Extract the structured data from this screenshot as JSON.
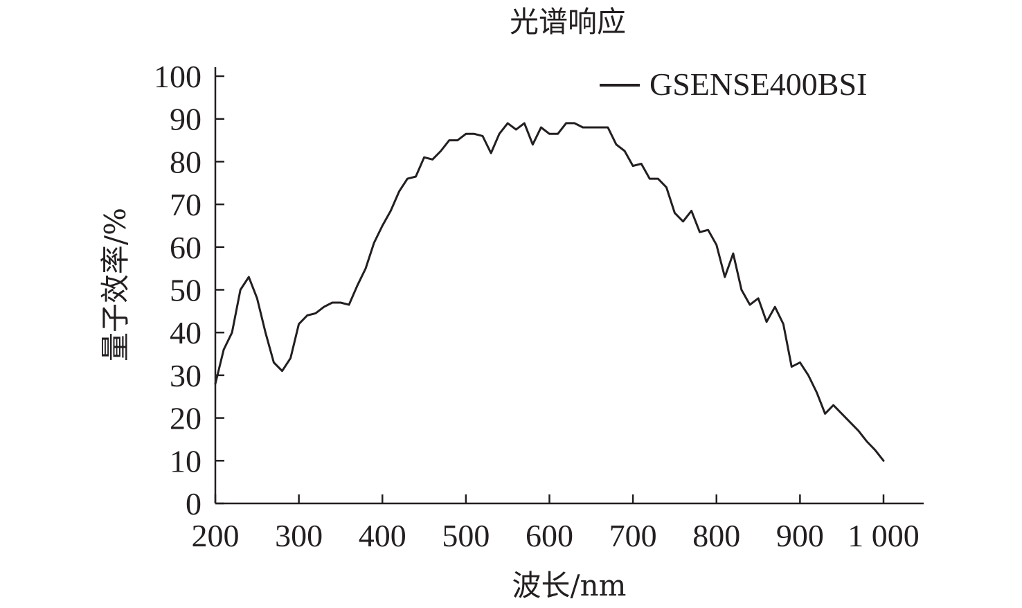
{
  "chart_data": {
    "type": "line",
    "title": "光谱响应",
    "xlabel": "波长/nm",
    "ylabel": "量子效率/%",
    "xlim": [
      200,
      1000
    ],
    "ylim": [
      0,
      100
    ],
    "x_ticks": [
      200,
      300,
      400,
      500,
      600,
      700,
      800,
      900,
      1000
    ],
    "x_tick_labels": [
      "200",
      "300",
      "400",
      "500",
      "600",
      "700",
      "800",
      "900",
      "1 000"
    ],
    "y_ticks": [
      0,
      10,
      20,
      30,
      40,
      50,
      60,
      70,
      80,
      90,
      100
    ],
    "y_tick_labels": [
      "0",
      "10",
      "20",
      "30",
      "40",
      "50",
      "60",
      "70",
      "80",
      "90",
      "100"
    ],
    "grid": false,
    "legend_position": "top-right",
    "line_color": "#231f20",
    "series": [
      {
        "name": "GSENSE400BSI",
        "x": [
          200,
          210,
          220,
          230,
          240,
          250,
          260,
          270,
          280,
          290,
          300,
          310,
          320,
          330,
          340,
          350,
          360,
          370,
          380,
          390,
          400,
          410,
          420,
          430,
          440,
          450,
          460,
          470,
          480,
          490,
          500,
          510,
          520,
          530,
          540,
          550,
          560,
          570,
          580,
          590,
          600,
          610,
          620,
          630,
          640,
          650,
          660,
          670,
          680,
          690,
          700,
          710,
          720,
          730,
          740,
          750,
          760,
          770,
          780,
          790,
          800,
          810,
          820,
          830,
          840,
          850,
          860,
          870,
          880,
          890,
          900,
          910,
          920,
          930,
          940,
          950,
          960,
          970,
          980,
          990,
          1000
        ],
        "y": [
          28,
          36,
          40,
          50,
          53,
          48,
          40,
          33,
          31,
          34,
          42,
          44,
          44.5,
          46,
          47,
          47,
          46.5,
          51,
          55,
          61,
          65,
          68.5,
          73,
          76,
          76.5,
          81,
          80.5,
          82.5,
          85,
          85,
          86.5,
          86.5,
          86,
          82,
          86.5,
          89,
          87.5,
          89,
          84,
          88,
          86.5,
          86.5,
          89,
          89,
          88,
          88,
          88,
          88,
          84,
          82.5,
          79,
          79.5,
          76,
          76,
          74,
          68,
          66,
          68.5,
          63.5,
          64,
          60.5,
          53,
          58.5,
          50,
          46.5,
          48,
          42.5,
          46,
          42,
          32,
          33,
          30,
          26,
          21,
          23,
          21,
          19,
          17,
          14.5,
          12.5,
          10
        ]
      }
    ]
  }
}
